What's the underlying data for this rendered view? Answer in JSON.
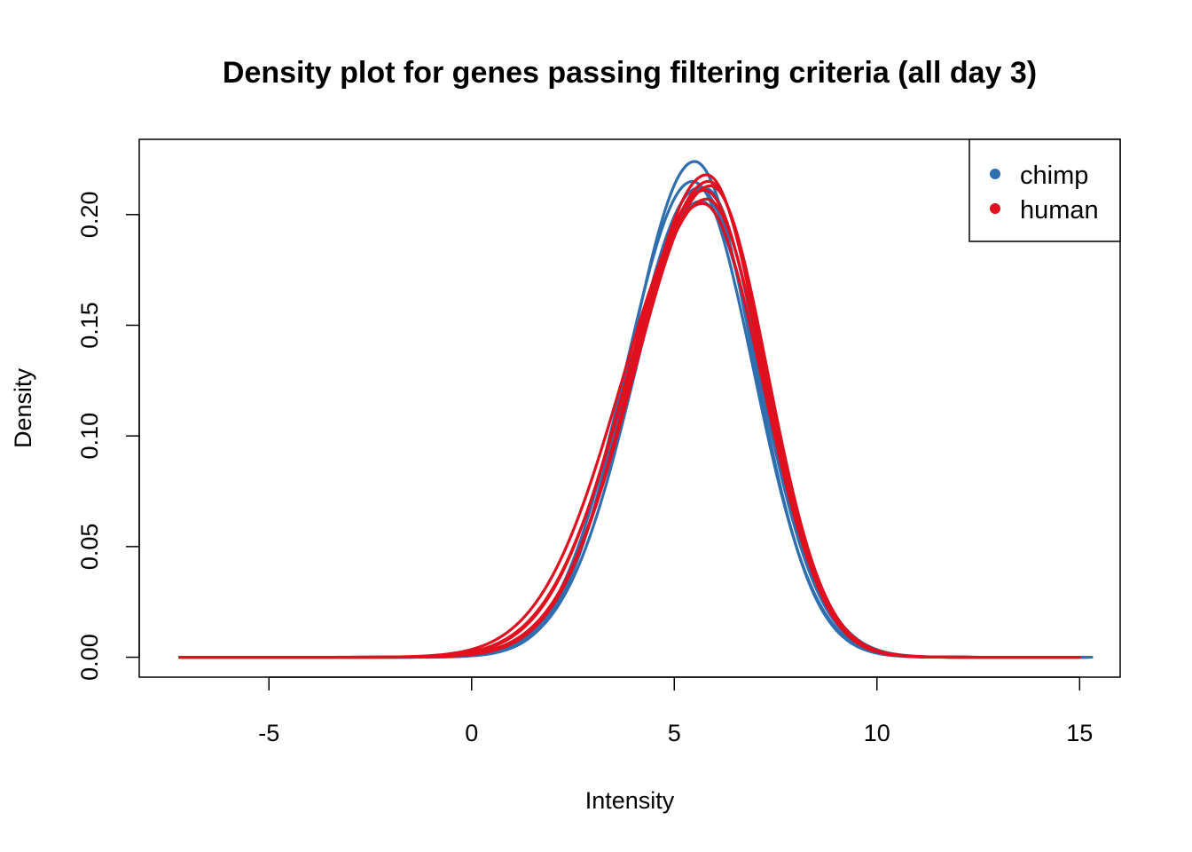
{
  "chart_data": {
    "type": "line",
    "title": "Density plot for genes passing filtering criteria (all day 3)",
    "xlabel": "Intensity",
    "ylabel": "Density",
    "xlim": [
      -8.2,
      16.0
    ],
    "ylim": [
      -0.009,
      0.234
    ],
    "x_ticks": [
      -5,
      0,
      5,
      10,
      15
    ],
    "x_tick_labels": [
      "-5",
      "0",
      "5",
      "10",
      "15"
    ],
    "y_ticks": [
      0.0,
      0.05,
      0.1,
      0.15,
      0.2
    ],
    "y_tick_labels": [
      "0.00",
      "0.05",
      "0.10",
      "0.15",
      "0.20"
    ],
    "grid": false,
    "legend": {
      "position": "top-right",
      "entries": [
        {
          "label": "chimp",
          "color": "#2F6FB0"
        },
        {
          "label": "human",
          "color": "#E0101E"
        }
      ]
    },
    "colors": {
      "chimp": "#2F6FB0",
      "human": "#E0101E"
    },
    "series": [
      {
        "group": "chimp",
        "mu": 5.5,
        "sl": 1.6,
        "sr": 1.45,
        "peak": 0.224,
        "x_min": -7.2,
        "x_max": 15.3
      },
      {
        "group": "chimp",
        "mu": 5.45,
        "sl": 1.65,
        "sr": 1.5,
        "peak": 0.215,
        "x_min": -7.2,
        "x_max": 15.2
      },
      {
        "group": "chimp",
        "mu": 5.6,
        "sl": 1.7,
        "sr": 1.48,
        "peak": 0.212,
        "x_min": -7.2,
        "x_max": 15.2
      },
      {
        "group": "chimp",
        "mu": 5.75,
        "sl": 1.72,
        "sr": 1.42,
        "peak": 0.212,
        "x_min": -7.2,
        "x_max": 15.2
      },
      {
        "group": "chimp",
        "mu": 5.65,
        "sl": 1.75,
        "sr": 1.52,
        "peak": 0.206,
        "x_min": -7.2,
        "x_max": 15.2
      },
      {
        "group": "human",
        "mu": 5.8,
        "sl": 1.8,
        "sr": 1.4,
        "peak": 0.218,
        "x_min": -7.2,
        "x_max": 15.0
      },
      {
        "group": "human",
        "mu": 5.85,
        "sl": 1.85,
        "sr": 1.42,
        "peak": 0.215,
        "x_min": -7.2,
        "x_max": 15.0
      },
      {
        "group": "human",
        "mu": 5.75,
        "sl": 1.9,
        "sr": 1.45,
        "peak": 0.211,
        "x_min": -7.2,
        "x_max": 15.0
      },
      {
        "group": "human",
        "mu": 5.8,
        "sl": 1.95,
        "sr": 1.45,
        "peak": 0.207,
        "x_min": -7.2,
        "x_max": 15.0
      },
      {
        "group": "human",
        "mu": 5.7,
        "sl": 2.0,
        "sr": 1.48,
        "peak": 0.205,
        "x_min": -7.2,
        "x_max": 15.0
      },
      {
        "group": "human",
        "mu": 5.9,
        "sl": 1.88,
        "sr": 1.4,
        "peak": 0.213,
        "x_min": -7.2,
        "x_max": 15.0
      }
    ]
  }
}
